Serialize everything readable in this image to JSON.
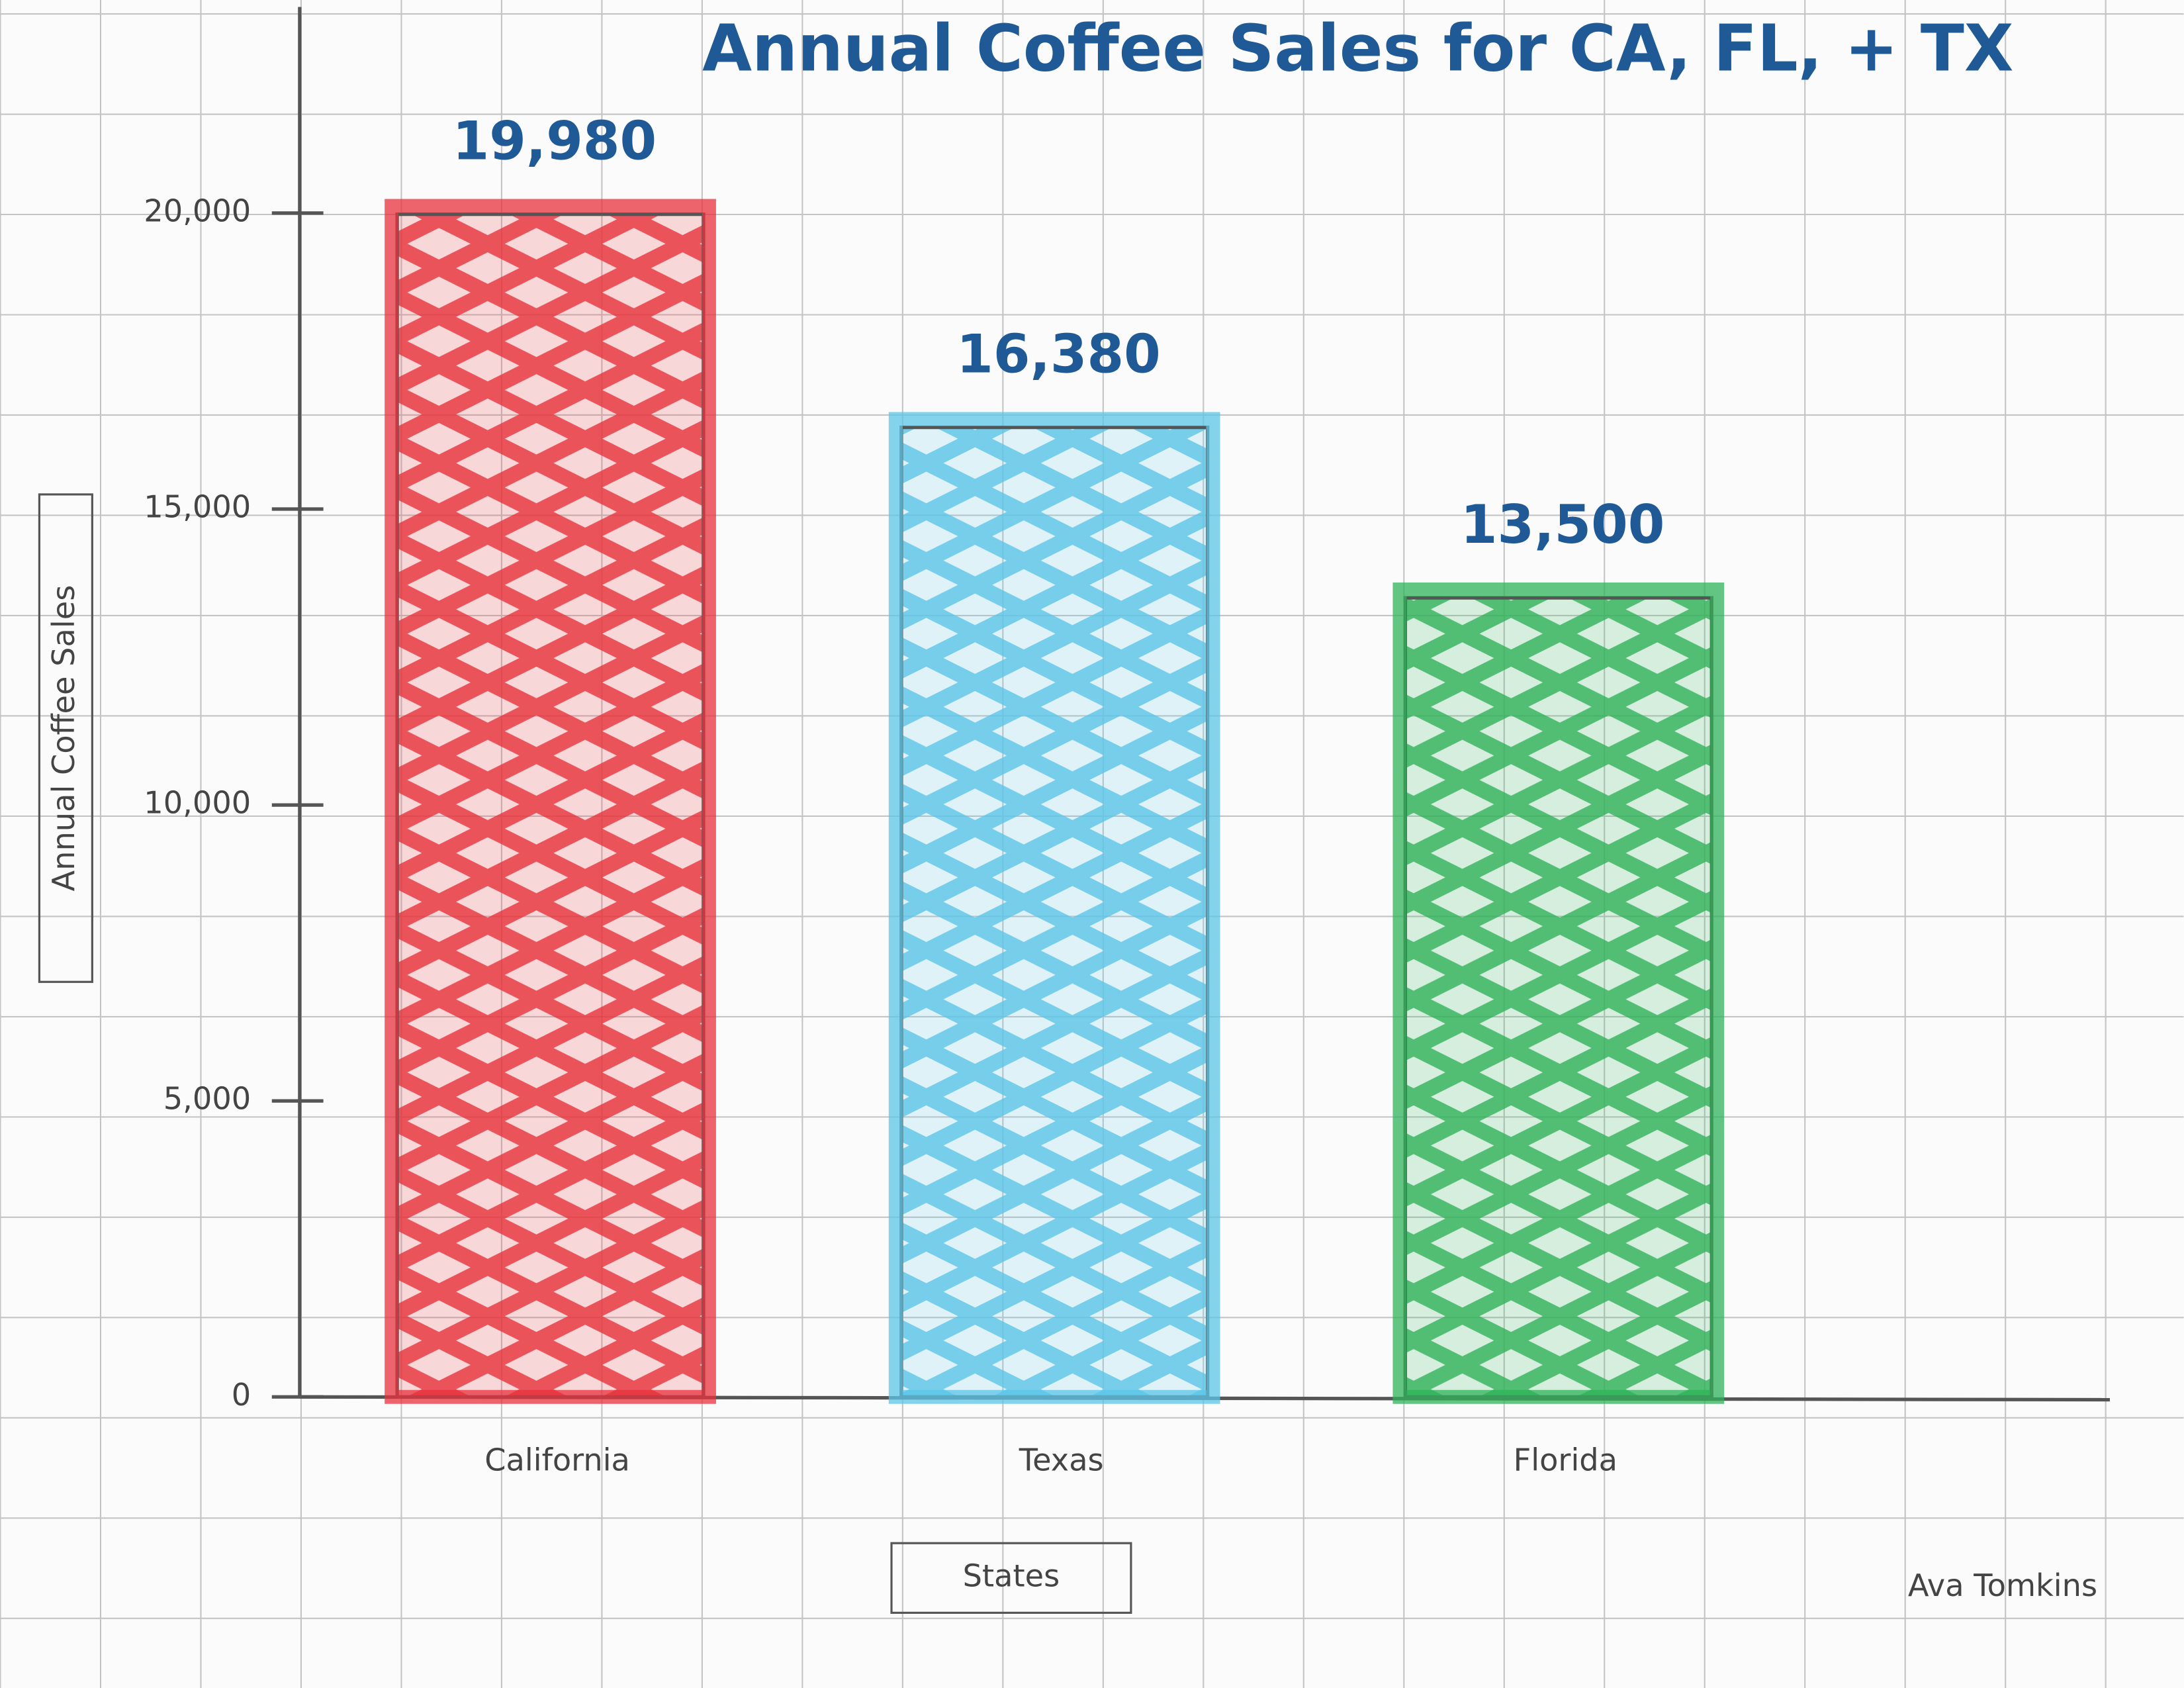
{
  "chart_data": {
    "type": "bar",
    "title": "Annual Coffee Sales for CA, FL, + TX",
    "x_label": "States",
    "y_label": "Annual Coffee Sales",
    "author": "Ava Tomkins",
    "categories": [
      "California",
      "Texas",
      "Florida"
    ],
    "values": [
      19980,
      16380,
      13500
    ],
    "value_labels": [
      "19,980",
      "16,380",
      "13,500"
    ],
    "colors": [
      "#e8323c",
      "#5cc6e8",
      "#2fb35a"
    ],
    "ylim": [
      0,
      23500
    ],
    "yticks": [
      0,
      {
        "value": 5000,
        "label": "5,000"
      },
      {
        "value": 10000,
        "label": "10,000"
      },
      {
        "value": 15000,
        "label": "15,000"
      },
      {
        "value": 20000,
        "label": "20,000"
      }
    ],
    "grid": false
  }
}
